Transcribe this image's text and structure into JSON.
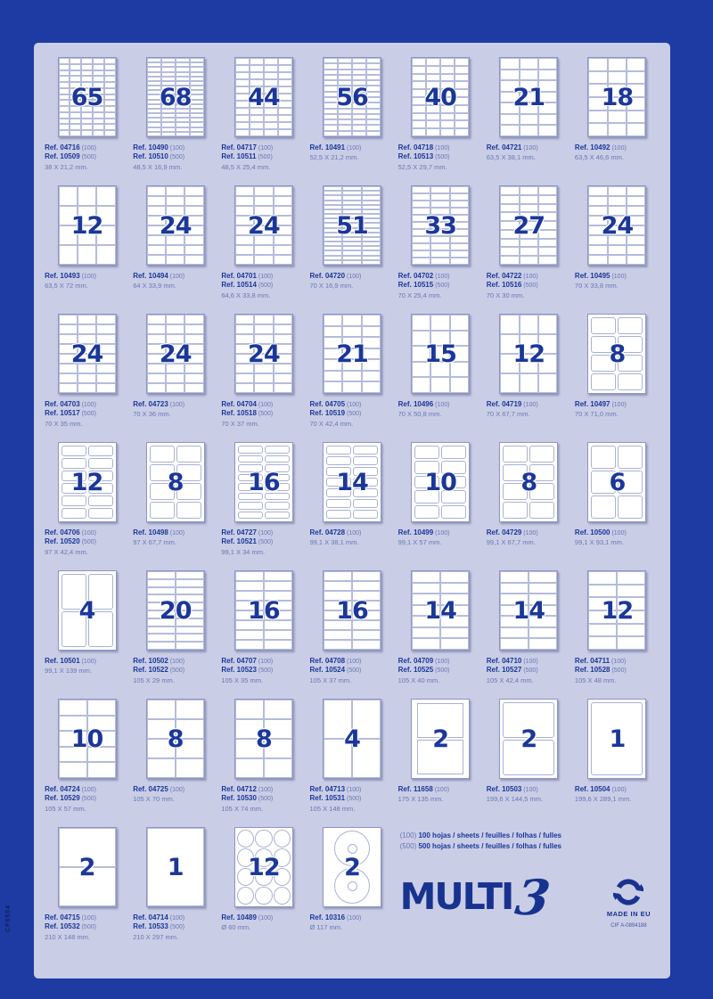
{
  "page": {
    "bg_color": "#1d3ba3",
    "panel_color": "#c9cde6",
    "accent_color": "#1b3799",
    "side_code": "CF6554"
  },
  "legend": {
    "line1_tag": "(100)",
    "line1_text": "100 hojas / sheets / feuilles / folhas / fulles",
    "line2_tag": "(500)",
    "line2_text": "500 hojas / sheets / feuilles / folhas / fulles"
  },
  "brand": {
    "name": "MULTI",
    "three": "3",
    "made_in": "MADE IN EU",
    "recycle_icon": "green-dot-recycle",
    "cif": "CIF A-0894188"
  },
  "cells": [
    {
      "count": "65",
      "grid": [
        5,
        13
      ],
      "style": "lines",
      "refs": [
        {
          "code": "Ref. 04716",
          "qty": "(100)"
        },
        {
          "code": "Ref. 10509",
          "qty": "(500)"
        }
      ],
      "size": "38 X 21,2 mm."
    },
    {
      "count": "68",
      "grid": [
        4,
        17
      ],
      "style": "lines",
      "refs": [
        {
          "code": "Ref. 10490",
          "qty": "(100)"
        },
        {
          "code": "Ref. 10510",
          "qty": "(500)"
        }
      ],
      "size": "48,5 X 16,9 mm."
    },
    {
      "count": "44",
      "grid": [
        4,
        11
      ],
      "style": "lines",
      "refs": [
        {
          "code": "Ref. 04717",
          "qty": "(100)"
        },
        {
          "code": "Ref. 10511",
          "qty": "(500)"
        }
      ],
      "size": "48,5 X 25,4 mm."
    },
    {
      "count": "56",
      "grid": [
        4,
        14
      ],
      "style": "lines",
      "refs": [
        {
          "code": "Ref. 10491",
          "qty": "(100)"
        }
      ],
      "size": "52,5 X 21,2 mm."
    },
    {
      "count": "40",
      "grid": [
        4,
        10
      ],
      "style": "lines",
      "refs": [
        {
          "code": "Ref. 04718",
          "qty": "(100)"
        },
        {
          "code": "Ref. 10513",
          "qty": "(500)"
        }
      ],
      "size": "52,5 X 29,7 mm."
    },
    {
      "count": "21",
      "grid": [
        3,
        7
      ],
      "style": "lines",
      "refs": [
        {
          "code": "Ref. 04721",
          "qty": "(100)"
        }
      ],
      "size": "63,5 X 38,1 mm."
    },
    {
      "count": "18",
      "grid": [
        3,
        6
      ],
      "style": "lines",
      "refs": [
        {
          "code": "Ref. 10492",
          "qty": "(100)"
        }
      ],
      "size": "63,5 X 46,6 mm."
    },
    {
      "count": "12",
      "grid": [
        3,
        4
      ],
      "style": "lines",
      "refs": [
        {
          "code": "Ref. 10493",
          "qty": "(100)"
        }
      ],
      "size": "63,5 X 72 mm."
    },
    {
      "count": "24",
      "grid": [
        3,
        8
      ],
      "style": "lines",
      "refs": [
        {
          "code": "Ref. 10494",
          "qty": "(100)"
        }
      ],
      "size": "64 X 33,9 mm."
    },
    {
      "count": "24",
      "grid": [
        3,
        8
      ],
      "style": "lines",
      "refs": [
        {
          "code": "Ref. 04701",
          "qty": "(100)"
        },
        {
          "code": "Ref. 10514",
          "qty": "(500)"
        }
      ],
      "size": "64,6 X 33,8 mm."
    },
    {
      "count": "51",
      "grid": [
        3,
        17
      ],
      "style": "lines",
      "refs": [
        {
          "code": "Ref. 04720",
          "qty": "(100)"
        }
      ],
      "size": "70 X 16,9 mm."
    },
    {
      "count": "33",
      "grid": [
        3,
        11
      ],
      "style": "lines",
      "refs": [
        {
          "code": "Ref. 04702",
          "qty": "(100)"
        },
        {
          "code": "Ref. 10515",
          "qty": "(500)"
        }
      ],
      "size": "70 X 25,4 mm."
    },
    {
      "count": "27",
      "grid": [
        3,
        9
      ],
      "style": "lines",
      "refs": [
        {
          "code": "Ref. 04722",
          "qty": "(100)"
        },
        {
          "code": "Ref. 10516",
          "qty": "(500)"
        }
      ],
      "size": "70 X 30 mm."
    },
    {
      "count": "24",
      "grid": [
        3,
        8
      ],
      "style": "lines",
      "refs": [
        {
          "code": "Ref. 10495",
          "qty": "(100)"
        }
      ],
      "size": "70 X 33,8 mm."
    },
    {
      "count": "24",
      "grid": [
        3,
        8
      ],
      "style": "lines",
      "refs": [
        {
          "code": "Ref. 04703",
          "qty": "(100)"
        },
        {
          "code": "Ref. 10517",
          "qty": "(500)"
        }
      ],
      "size": "70 X 35 mm."
    },
    {
      "count": "24",
      "grid": [
        3,
        8
      ],
      "style": "lines",
      "refs": [
        {
          "code": "Ref. 04723",
          "qty": "(100)"
        }
      ],
      "size": "70 X 36 mm."
    },
    {
      "count": "24",
      "grid": [
        3,
        8
      ],
      "style": "lines",
      "refs": [
        {
          "code": "Ref. 04704",
          "qty": "(100)"
        },
        {
          "code": "Ref. 10518",
          "qty": "(500)"
        }
      ],
      "size": "70 X 37 mm."
    },
    {
      "count": "21",
      "grid": [
        3,
        7
      ],
      "style": "lines",
      "refs": [
        {
          "code": "Ref. 04705",
          "qty": "(100)"
        },
        {
          "code": "Ref. 10519",
          "qty": "(500)"
        }
      ],
      "size": "70 X 42,4 mm."
    },
    {
      "count": "15",
      "grid": [
        3,
        5
      ],
      "style": "lines",
      "refs": [
        {
          "code": "Ref. 10496",
          "qty": "(100)"
        }
      ],
      "size": "70 X 50,8 mm."
    },
    {
      "count": "12",
      "grid": [
        3,
        4
      ],
      "style": "lines",
      "refs": [
        {
          "code": "Ref. 04719",
          "qty": "(100)"
        }
      ],
      "size": "70 X 67,7 mm."
    },
    {
      "count": "8",
      "grid": [
        2,
        4
      ],
      "style": "gap",
      "refs": [
        {
          "code": "Ref. 10497",
          "qty": "(100)"
        }
      ],
      "size": "70 X 71,0 mm."
    },
    {
      "count": "12",
      "grid": [
        2,
        6
      ],
      "style": "gap",
      "refs": [
        {
          "code": "Ref. 04706",
          "qty": "(100)"
        },
        {
          "code": "Ref. 10520",
          "qty": "(500)"
        }
      ],
      "size": "97 X 42,4 mm."
    },
    {
      "count": "8",
      "grid": [
        2,
        4
      ],
      "style": "gap",
      "refs": [
        {
          "code": "Ref. 10498",
          "qty": "(100)"
        }
      ],
      "size": "97 X 67,7 mm."
    },
    {
      "count": "16",
      "grid": [
        2,
        8
      ],
      "style": "gap",
      "refs": [
        {
          "code": "Ref. 04727",
          "qty": "(100)"
        },
        {
          "code": "Ref. 10521",
          "qty": "(500)"
        }
      ],
      "size": "99,1 X 34 mm."
    },
    {
      "count": "14",
      "grid": [
        2,
        7
      ],
      "style": "gap",
      "refs": [
        {
          "code": "Ref. 04728",
          "qty": "(100)"
        }
      ],
      "size": "99,1 X 38,1 mm."
    },
    {
      "count": "10",
      "grid": [
        2,
        5
      ],
      "style": "gap",
      "refs": [
        {
          "code": "Ref. 10499",
          "qty": "(100)"
        }
      ],
      "size": "99,1 X 57 mm."
    },
    {
      "count": "8",
      "grid": [
        2,
        4
      ],
      "style": "gap",
      "refs": [
        {
          "code": "Ref. 04729",
          "qty": "(100)"
        }
      ],
      "size": "99,1 X 67,7 mm."
    },
    {
      "count": "6",
      "grid": [
        2,
        3
      ],
      "style": "gap",
      "refs": [
        {
          "code": "Ref. 10500",
          "qty": "(100)"
        }
      ],
      "size": "99,1 X 93,1 mm."
    },
    {
      "count": "4",
      "grid": [
        2,
        2
      ],
      "style": "gap",
      "refs": [
        {
          "code": "Ref. 10501",
          "qty": "(100)"
        }
      ],
      "size": "99,1 X 139 mm."
    },
    {
      "count": "20",
      "grid": [
        2,
        10
      ],
      "style": "lines",
      "refs": [
        {
          "code": "Ref. 10502",
          "qty": "(100)"
        },
        {
          "code": "Ref. 10522",
          "qty": "(500)"
        }
      ],
      "size": "105 X 29 mm."
    },
    {
      "count": "16",
      "grid": [
        2,
        8
      ],
      "style": "lines",
      "refs": [
        {
          "code": "Ref. 04707",
          "qty": "(100)"
        },
        {
          "code": "Ref. 10523",
          "qty": "(500)"
        }
      ],
      "size": "105 X 35 mm."
    },
    {
      "count": "16",
      "grid": [
        2,
        8
      ],
      "style": "lines",
      "refs": [
        {
          "code": "Ref. 04708",
          "qty": "(100)"
        },
        {
          "code": "Ref. 10524",
          "qty": "(500)"
        }
      ],
      "size": "105 X 37 mm."
    },
    {
      "count": "14",
      "grid": [
        2,
        7
      ],
      "style": "lines",
      "refs": [
        {
          "code": "Ref. 04709",
          "qty": "(100)"
        },
        {
          "code": "Ref. 10525",
          "qty": "(500)"
        }
      ],
      "size": "105 X 40 mm."
    },
    {
      "count": "14",
      "grid": [
        2,
        7
      ],
      "style": "lines",
      "refs": [
        {
          "code": "Ref. 04710",
          "qty": "(100)"
        },
        {
          "code": "Ref. 10527",
          "qty": "(500)"
        }
      ],
      "size": "105 X 42,4 mm."
    },
    {
      "count": "12",
      "grid": [
        2,
        6
      ],
      "style": "lines",
      "refs": [
        {
          "code": "Ref. 04711",
          "qty": "(100)"
        },
        {
          "code": "Ref. 10528",
          "qty": "(500)"
        }
      ],
      "size": "105 X 48 mm."
    },
    {
      "count": "10",
      "grid": [
        2,
        5
      ],
      "style": "lines",
      "refs": [
        {
          "code": "Ref. 04724",
          "qty": "(100)"
        },
        {
          "code": "Ref. 10529",
          "qty": "(500)"
        }
      ],
      "size": "105 X 57 mm."
    },
    {
      "count": "8",
      "grid": [
        2,
        4
      ],
      "style": "lines",
      "refs": [
        {
          "code": "Ref. 04725",
          "qty": "(100)"
        }
      ],
      "size": "105 X 70 mm."
    },
    {
      "count": "8",
      "grid": [
        2,
        4
      ],
      "style": "lines",
      "refs": [
        {
          "code": "Ref. 04712",
          "qty": "(100)"
        },
        {
          "code": "Ref. 10530",
          "qty": "(500)"
        }
      ],
      "size": "105 X 74 mm."
    },
    {
      "count": "4",
      "grid": [
        2,
        2
      ],
      "style": "lines",
      "refs": [
        {
          "code": "Ref. 04713",
          "qty": "(100)"
        },
        {
          "code": "Ref. 10531",
          "qty": "(500)"
        }
      ],
      "size": "105 X 148 mm."
    },
    {
      "count": "2",
      "grid": [
        1,
        2
      ],
      "style": "gap175",
      "refs": [
        {
          "code": "Ref. 11658",
          "qty": "(100)"
        }
      ],
      "size": "175 X 135 mm."
    },
    {
      "count": "2",
      "grid": [
        1,
        2
      ],
      "style": "gap",
      "refs": [
        {
          "code": "Ref. 10503",
          "qty": "(100)"
        }
      ],
      "size": "199,6 X 144,5 mm."
    },
    {
      "count": "1",
      "grid": [
        1,
        1
      ],
      "style": "gap",
      "refs": [
        {
          "code": "Ref. 10504",
          "qty": "(100)"
        }
      ],
      "size": "199,6 X 289,1 mm."
    },
    {
      "count": "2",
      "grid": [
        1,
        2
      ],
      "style": "lines",
      "refs": [
        {
          "code": "Ref. 04715",
          "qty": "(100)"
        },
        {
          "code": "Ref. 10532",
          "qty": "(500)"
        }
      ],
      "size": "210 X 148 mm."
    },
    {
      "count": "1",
      "grid": [
        1,
        1
      ],
      "style": "lines",
      "refs": [
        {
          "code": "Ref. 04714",
          "qty": "(100)"
        },
        {
          "code": "Ref. 10533",
          "qty": "(500)"
        }
      ],
      "size": "210 X 297 mm."
    },
    {
      "count": "12",
      "grid": [
        3,
        4
      ],
      "style": "circles",
      "refs": [
        {
          "code": "Ref. 10489",
          "qty": "(100)"
        }
      ],
      "size": "Ø 60 mm."
    },
    {
      "count": "2",
      "grid": [
        1,
        2
      ],
      "style": "cd",
      "refs": [
        {
          "code": "Ref. 10316",
          "qty": "(100)"
        }
      ],
      "size": "Ø 117 mm."
    }
  ]
}
